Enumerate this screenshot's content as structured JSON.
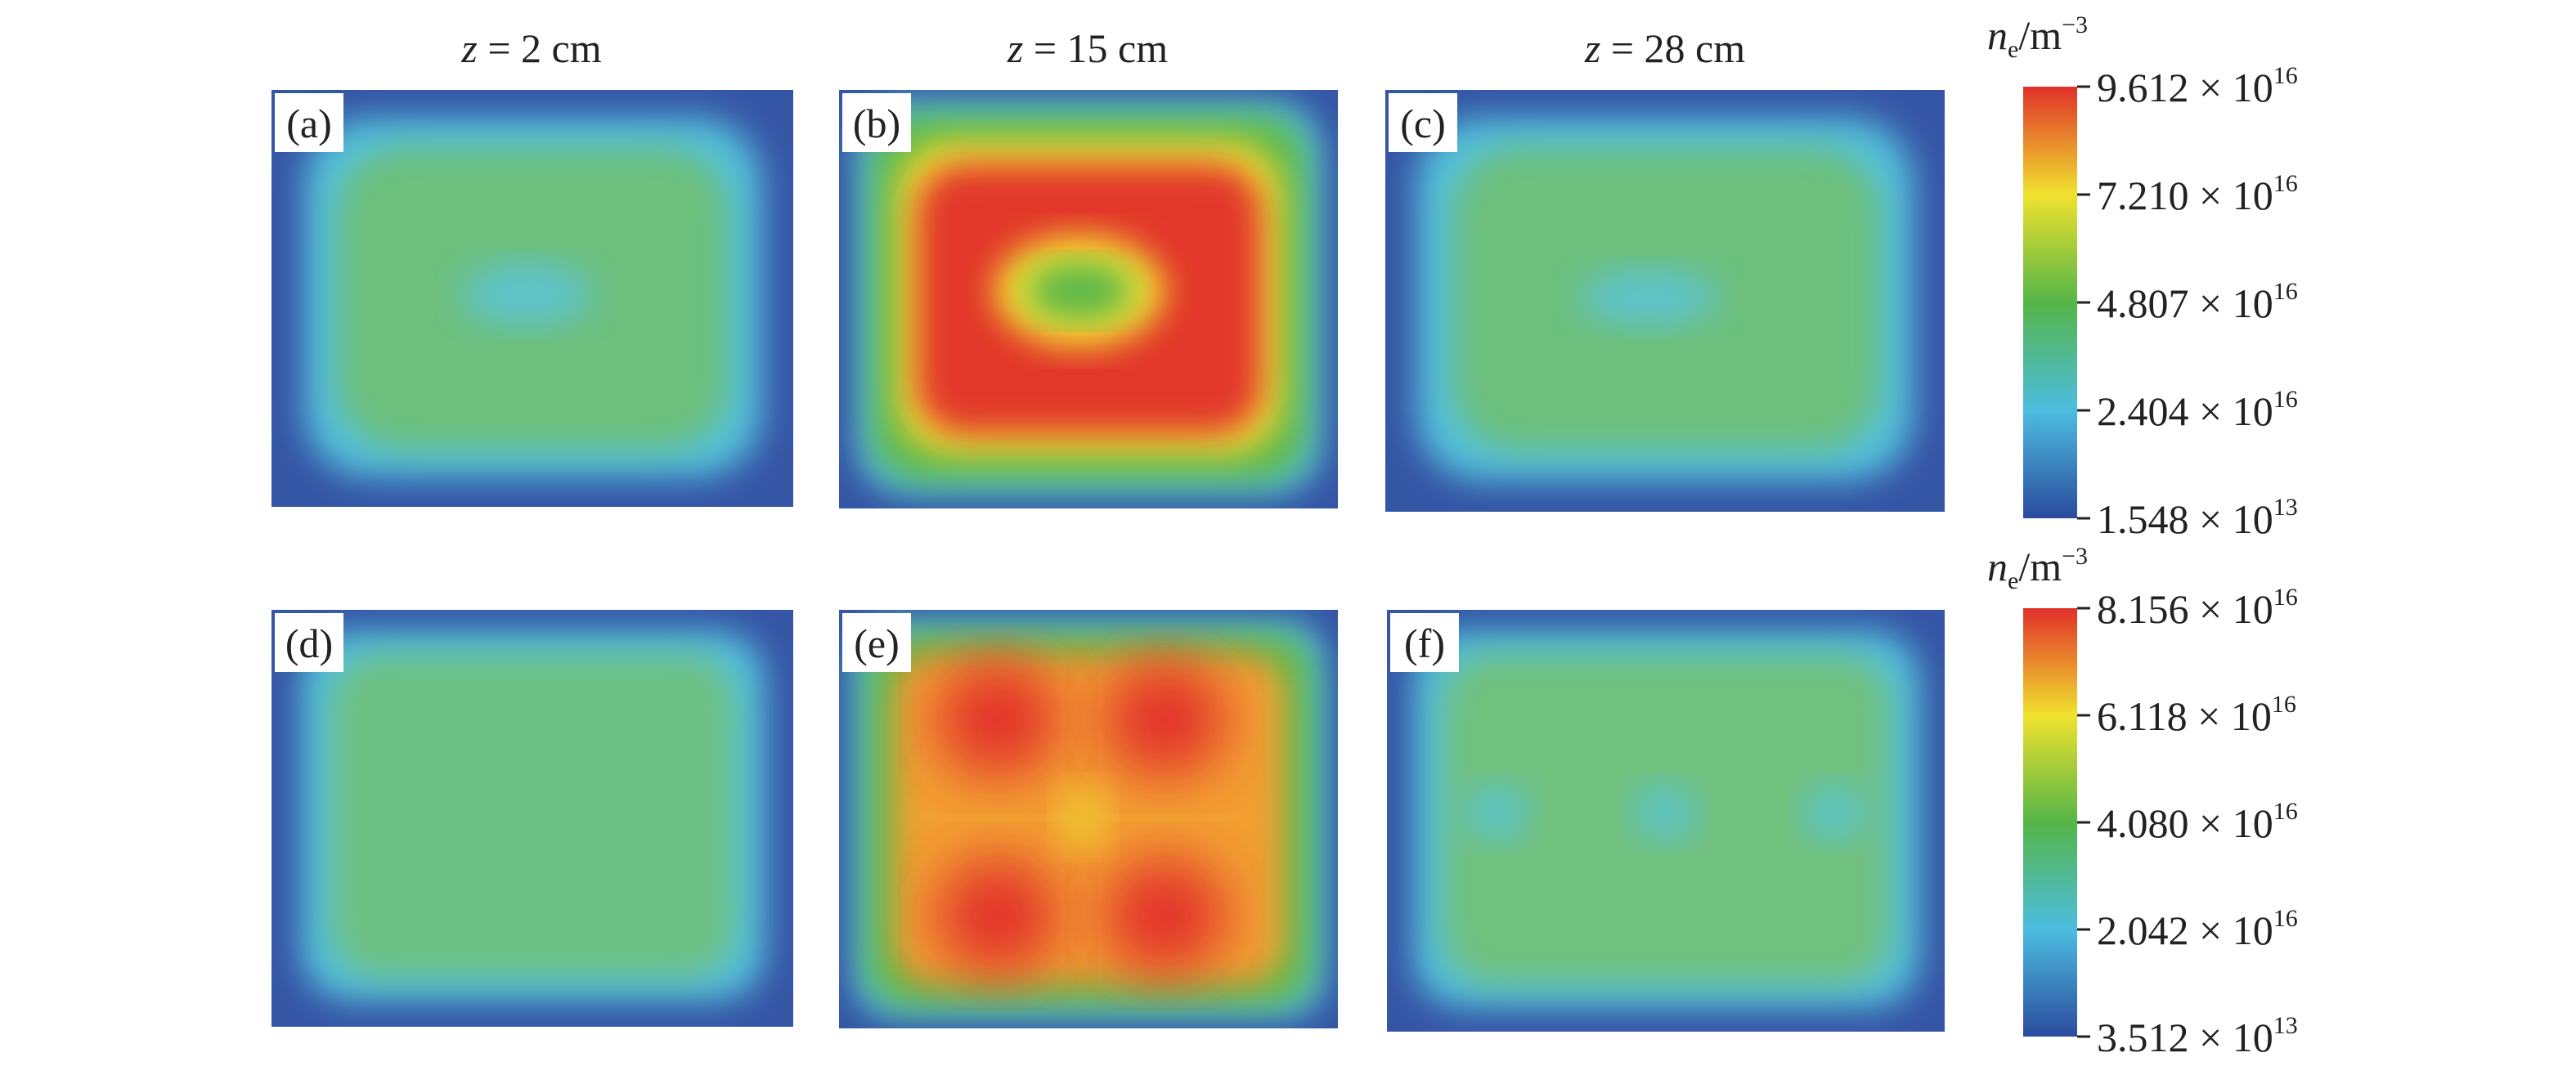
{
  "columns": [
    {
      "variable": "z",
      "text": " = 2 cm"
    },
    {
      "variable": "z",
      "text": " = 15 cm"
    },
    {
      "variable": "z",
      "text": " = 28 cm"
    }
  ],
  "panels": [
    "(a)",
    "(b)",
    "(c)",
    "(d)",
    "(e)",
    "(f)"
  ],
  "colorbars": [
    {
      "symbol": "n",
      "subscript": "e",
      "unit": "/m",
      "unit_exponent": "−3",
      "ticks": [
        {
          "mantissa": "9.612 × 10",
          "exponent": "16"
        },
        {
          "mantissa": "7.210 × 10",
          "exponent": "16"
        },
        {
          "mantissa": "4.807 × 10",
          "exponent": "16"
        },
        {
          "mantissa": "2.404 × 10",
          "exponent": "16"
        },
        {
          "mantissa": "1.548 × 10",
          "exponent": "13"
        }
      ]
    },
    {
      "symbol": "n",
      "subscript": "e",
      "unit": "/m",
      "unit_exponent": "−3",
      "ticks": [
        {
          "mantissa": "8.156 × 10",
          "exponent": "16"
        },
        {
          "mantissa": "6.118 × 10",
          "exponent": "16"
        },
        {
          "mantissa": "4.080 × 10",
          "exponent": "16"
        },
        {
          "mantissa": "2.042 × 10",
          "exponent": "16"
        },
        {
          "mantissa": "3.512 × 10",
          "exponent": "13"
        }
      ]
    }
  ]
}
